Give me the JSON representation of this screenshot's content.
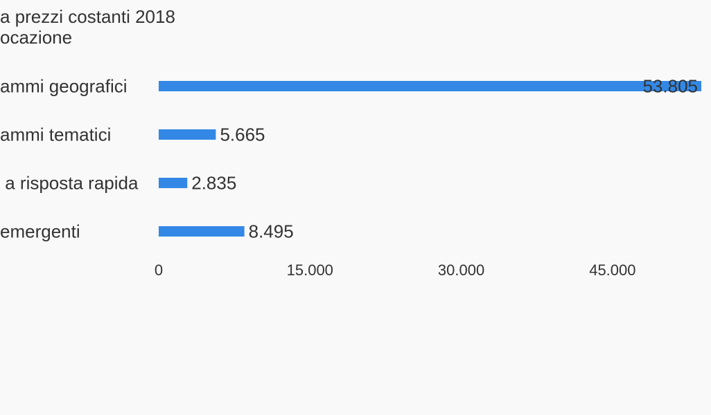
{
  "chart_data": {
    "type": "bar",
    "orientation": "horizontal",
    "title_lines": [
      "a prezzi costanti 2018",
      "ocazione"
    ],
    "categories": [
      "ammi geografici",
      "ammi tematici",
      " a risposta rapida",
      "emergenti"
    ],
    "values": [
      53805,
      5665,
      2835,
      8495
    ],
    "value_labels": [
      "53.805",
      "5.665",
      "2.835",
      "8.495"
    ],
    "xlim": [
      0,
      53805
    ],
    "ticks": [
      0,
      15000,
      30000,
      45000
    ],
    "tick_labels": [
      "0",
      "15.000",
      "30.000",
      "45.000"
    ],
    "bar_color": "#3388e6",
    "grid": false,
    "legend": "none"
  }
}
